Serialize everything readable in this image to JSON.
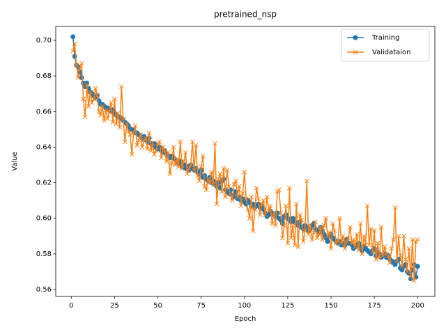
{
  "chart_data": {
    "type": "line",
    "title": "pretrained_nsp",
    "x_label": "Epoch",
    "y_label": "Value",
    "legend": "upper right",
    "x": [
      1,
      2,
      3,
      4,
      5,
      6,
      7,
      8,
      9,
      10,
      11,
      12,
      13,
      14,
      15,
      16,
      17,
      18,
      19,
      20,
      21,
      22,
      23,
      24,
      25,
      26,
      27,
      28,
      29,
      30,
      31,
      32,
      33,
      34,
      35,
      36,
      37,
      38,
      39,
      40,
      41,
      42,
      43,
      44,
      45,
      46,
      47,
      48,
      49,
      50,
      51,
      52,
      53,
      54,
      55,
      56,
      57,
      58,
      59,
      60,
      61,
      62,
      63,
      64,
      65,
      66,
      67,
      68,
      69,
      70,
      71,
      72,
      73,
      74,
      75,
      76,
      77,
      78,
      79,
      80,
      81,
      82,
      83,
      84,
      85,
      86,
      87,
      88,
      89,
      90,
      91,
      92,
      93,
      94,
      95,
      96,
      97,
      98,
      99,
      100,
      101,
      102,
      103,
      104,
      105,
      106,
      107,
      108,
      109,
      110,
      111,
      112,
      113,
      114,
      115,
      116,
      117,
      118,
      119,
      120,
      121,
      122,
      123,
      124,
      125,
      126,
      127,
      128,
      129,
      130,
      131,
      132,
      133,
      134,
      135,
      136,
      137,
      138,
      139,
      140,
      141,
      142,
      143,
      144,
      145,
      146,
      147,
      148,
      149,
      150,
      151,
      152,
      153,
      154,
      155,
      156,
      157,
      158,
      159,
      160,
      161,
      162,
      163,
      164,
      165,
      166,
      167,
      168,
      169,
      170,
      171,
      172,
      173,
      174,
      175,
      176,
      177,
      178,
      179,
      180,
      181,
      182,
      183,
      184,
      185,
      186,
      187,
      188,
      189,
      190,
      191,
      192,
      193,
      194,
      195,
      196,
      197,
      198,
      199,
      200
    ],
    "series": [
      {
        "name": "Training",
        "color": "#1f77b4",
        "marker": "o",
        "values": [
          0.702,
          0.691,
          0.686,
          0.685,
          0.682,
          0.679,
          0.676,
          0.674,
          0.676,
          0.673,
          0.671,
          0.67,
          0.669,
          0.668,
          0.669,
          0.666,
          0.664,
          0.664,
          0.663,
          0.662,
          0.662,
          0.661,
          0.66,
          0.661,
          0.659,
          0.658,
          0.657,
          0.657,
          0.656,
          0.655,
          0.654,
          0.653,
          0.652,
          0.65,
          0.65,
          0.649,
          0.648,
          0.648,
          0.647,
          0.646,
          0.645,
          0.646,
          0.644,
          0.643,
          0.645,
          0.642,
          0.641,
          0.642,
          0.64,
          0.639,
          0.64,
          0.638,
          0.637,
          0.638,
          0.636,
          0.635,
          0.634,
          0.635,
          0.634,
          0.633,
          0.632,
          0.631,
          0.632,
          0.629,
          0.63,
          0.628,
          0.629,
          0.627,
          0.63,
          0.628,
          0.627,
          0.628,
          0.626,
          0.625,
          0.627,
          0.623,
          0.624,
          0.622,
          0.621,
          0.623,
          0.62,
          0.621,
          0.619,
          0.618,
          0.62,
          0.617,
          0.621,
          0.622,
          0.616,
          0.615,
          0.614,
          0.616,
          0.613,
          0.612,
          0.615,
          0.611,
          0.612,
          0.61,
          0.611,
          0.609,
          0.608,
          0.61,
          0.609,
          0.607,
          0.608,
          0.606,
          0.607,
          0.608,
          0.606,
          0.607,
          0.605,
          0.603,
          0.601,
          0.602,
          0.604,
          0.603,
          0.602,
          0.601,
          0.603,
          0.6,
          0.599,
          0.597,
          0.601,
          0.602,
          0.6,
          0.599,
          0.598,
          0.6,
          0.598,
          0.597,
          0.596,
          0.598,
          0.595,
          0.594,
          0.596,
          0.595,
          0.593,
          0.594,
          0.596,
          0.597,
          0.594,
          0.593,
          0.592,
          0.595,
          0.593,
          0.591,
          0.589,
          0.587,
          0.59,
          0.591,
          0.589,
          0.588,
          0.587,
          0.586,
          0.587,
          0.585,
          0.586,
          0.585,
          0.588,
          0.586,
          0.586,
          0.585,
          0.583,
          0.584,
          0.585,
          0.586,
          0.584,
          0.582,
          0.584,
          0.583,
          0.582,
          0.581,
          0.58,
          0.582,
          0.583,
          0.579,
          0.581,
          0.58,
          0.578,
          0.579,
          0.58,
          0.578,
          0.579,
          0.577,
          0.576,
          0.575,
          0.574,
          0.576,
          0.577,
          0.572,
          0.571,
          0.573,
          0.574,
          0.57,
          0.569,
          0.566,
          0.571,
          0.574,
          0.567,
          0.573
        ]
      },
      {
        "name": "Validataion",
        "color": "#ff7f0e",
        "marker": "x",
        "values": [
          0.694,
          0.698,
          0.686,
          0.679,
          0.684,
          0.687,
          0.667,
          0.657,
          0.675,
          0.663,
          0.671,
          0.665,
          0.667,
          0.673,
          0.669,
          0.66,
          0.658,
          0.663,
          0.655,
          0.661,
          0.656,
          0.66,
          0.665,
          0.654,
          0.667,
          0.653,
          0.659,
          0.651,
          0.674,
          0.656,
          0.643,
          0.653,
          0.649,
          0.647,
          0.636,
          0.648,
          0.652,
          0.641,
          0.644,
          0.647,
          0.64,
          0.644,
          0.645,
          0.639,
          0.648,
          0.638,
          0.642,
          0.636,
          0.638,
          0.642,
          0.643,
          0.634,
          0.64,
          0.638,
          0.632,
          0.637,
          0.625,
          0.631,
          0.64,
          0.63,
          0.633,
          0.629,
          0.643,
          0.628,
          0.632,
          0.637,
          0.625,
          0.628,
          0.63,
          0.643,
          0.627,
          0.641,
          0.624,
          0.621,
          0.629,
          0.635,
          0.618,
          0.616,
          0.622,
          0.62,
          0.626,
          0.619,
          0.642,
          0.608,
          0.622,
          0.625,
          0.615,
          0.628,
          0.612,
          0.627,
          0.618,
          0.613,
          0.61,
          0.619,
          0.621,
          0.612,
          0.618,
          0.607,
          0.614,
          0.626,
          0.611,
          0.605,
          0.6,
          0.612,
          0.593,
          0.605,
          0.617,
          0.611,
          0.602,
          0.608,
          0.61,
          0.602,
          0.612,
          0.604,
          0.607,
          0.597,
          0.603,
          0.596,
          0.615,
          0.616,
          0.603,
          0.589,
          0.596,
          0.607,
          0.586,
          0.617,
          0.589,
          0.596,
          0.585,
          0.608,
          0.584,
          0.602,
          0.599,
          0.587,
          0.593,
          0.621,
          0.591,
          0.596,
          0.588,
          0.592,
          0.598,
          0.589,
          0.591,
          0.595,
          0.588,
          0.596,
          0.6,
          0.59,
          0.592,
          0.583,
          0.597,
          0.593,
          0.586,
          0.587,
          0.6,
          0.586,
          0.59,
          0.583,
          0.587,
          0.589,
          0.595,
          0.586,
          0.588,
          0.584,
          0.591,
          0.582,
          0.597,
          0.58,
          0.59,
          0.585,
          0.607,
          0.585,
          0.594,
          0.581,
          0.593,
          0.577,
          0.586,
          0.578,
          0.595,
          0.579,
          0.584,
          0.58,
          0.579,
          0.575,
          0.583,
          0.588,
          0.606,
          0.576,
          0.59,
          0.579,
          0.573,
          0.59,
          0.577,
          0.57,
          0.583,
          0.567,
          0.588,
          0.565,
          0.587,
          0.588
        ]
      }
    ],
    "xlim": [
      -8.95,
      209.95
    ],
    "xticks": [
      0,
      25,
      50,
      75,
      100,
      125,
      150,
      175,
      200
    ],
    "ylim": [
      0.5561,
      0.7078
    ],
    "yticks": [
      0.56,
      0.58,
      {
        "value": 0.6,
        "label": "0.60"
      },
      0.62,
      0.64,
      0.66,
      0.68,
      {
        "value": 0.7,
        "label": "0.70"
      }
    ]
  }
}
